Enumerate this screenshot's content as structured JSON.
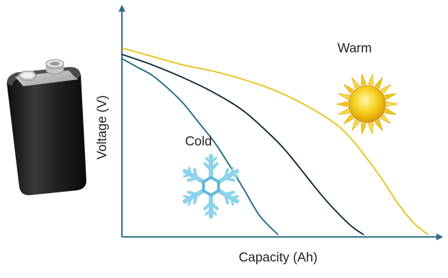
{
  "chart_data": {
    "type": "line",
    "xlabel": "Capacity (Ah)",
    "ylabel": "Voltage (V)",
    "xlim": [
      0,
      10
    ],
    "ylim": [
      0,
      10
    ],
    "grid": false,
    "annotations": [
      {
        "text": "Warm",
        "x": 7.6,
        "y": 8.7
      },
      {
        "text": "Cold",
        "x": 2.5,
        "y": 4.3
      }
    ],
    "series": [
      {
        "name": "",
        "condition": "warm",
        "color": "#E9C31C",
        "x": [
          0,
          1,
          2,
          3,
          4,
          5,
          6,
          7,
          7.5,
          8,
          8.5,
          9,
          9.5,
          10
        ],
        "y": [
          8.9,
          8.5,
          8.1,
          7.8,
          7.4,
          6.9,
          6.2,
          5.3,
          4.6,
          3.7,
          2.7,
          1.6,
          0.7,
          0.1
        ]
      },
      {
        "name": "",
        "condition": "normal",
        "color": "#0D2A3B",
        "x": [
          0,
          1,
          2,
          3,
          4,
          5,
          5.5,
          6,
          6.5,
          7,
          7.5,
          7.9
        ],
        "y": [
          8.6,
          8.1,
          7.5,
          6.8,
          5.9,
          4.6,
          3.8,
          2.9,
          2.0,
          1.2,
          0.5,
          0.1
        ]
      },
      {
        "name": "",
        "condition": "cold",
        "color": "#1E6C86",
        "x": [
          0,
          0.5,
          1,
          1.5,
          2,
          2.5,
          3,
          3.5,
          4,
          4.5,
          5.1
        ],
        "y": [
          8.4,
          8.0,
          7.6,
          7.0,
          6.3,
          5.4,
          4.5,
          3.4,
          2.2,
          1.0,
          0.1
        ]
      }
    ],
    "icons": [
      "battery-icon",
      "snowflake-icon",
      "sun-icon"
    ]
  }
}
